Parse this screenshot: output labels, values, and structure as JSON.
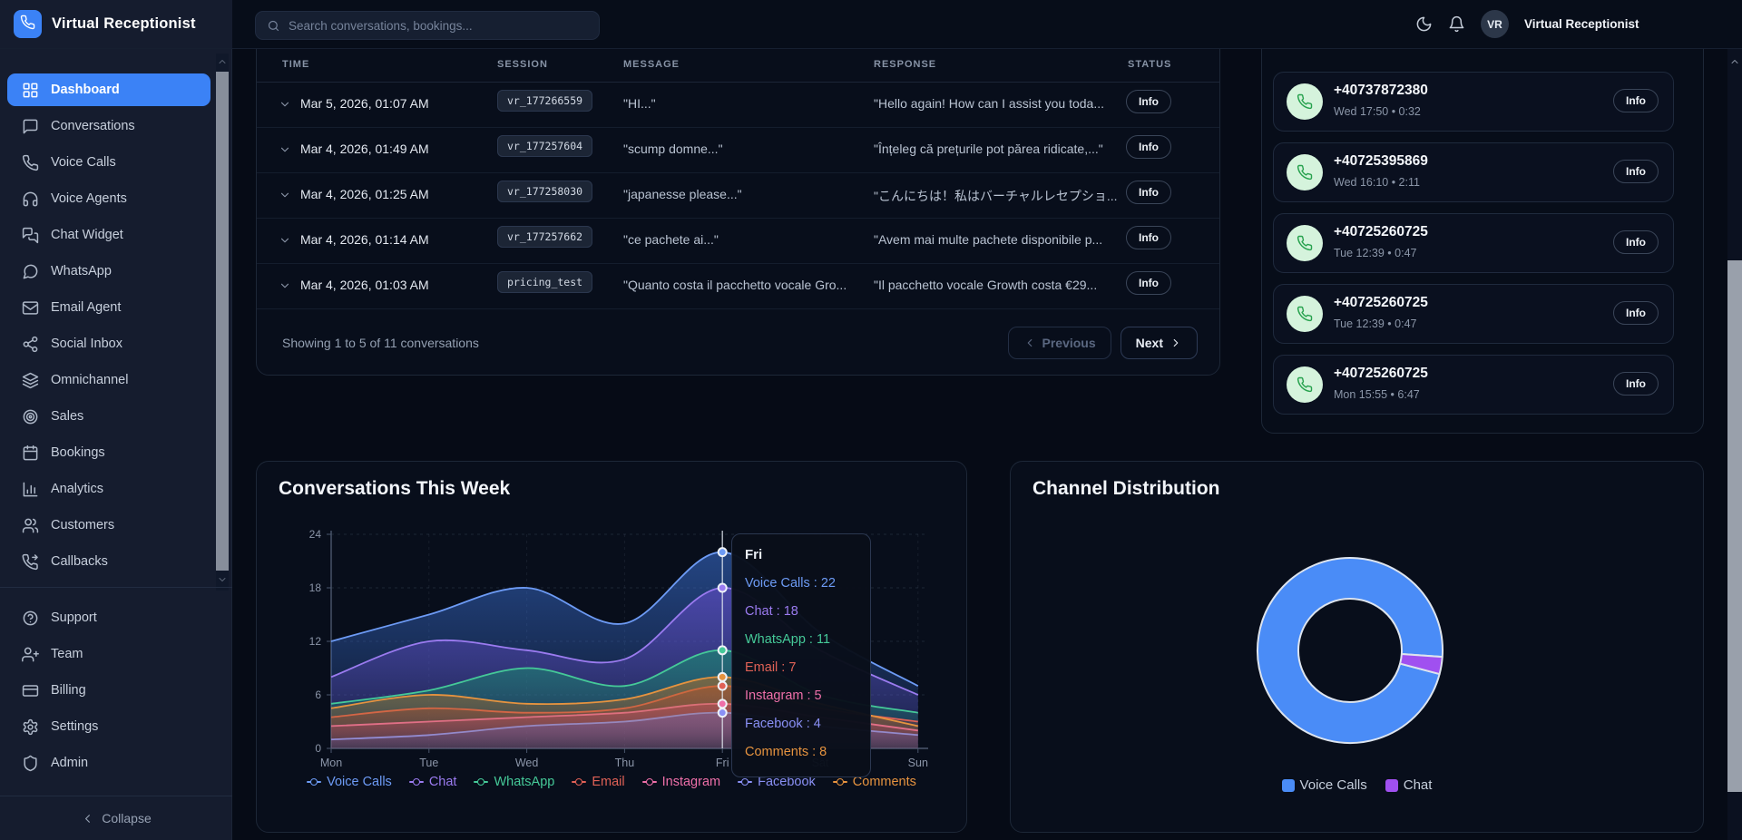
{
  "app": {
    "title": "Virtual Receptionist"
  },
  "topbar": {
    "search_placeholder": "Search conversations, bookings...",
    "user_name": "Virtual Receptionist",
    "user_initials": "VR"
  },
  "sidebar": {
    "items": [
      {
        "label": "Dashboard",
        "icon": "dashboard",
        "active": true
      },
      {
        "label": "Conversations",
        "icon": "message-square",
        "active": false
      },
      {
        "label": "Voice Calls",
        "icon": "phone",
        "active": false
      },
      {
        "label": "Voice Agents",
        "icon": "headphones",
        "active": false
      },
      {
        "label": "Chat Widget",
        "icon": "chat-widget",
        "active": false
      },
      {
        "label": "WhatsApp",
        "icon": "message-circle",
        "active": false
      },
      {
        "label": "Email Agent",
        "icon": "mail",
        "active": false
      },
      {
        "label": "Social Inbox",
        "icon": "share",
        "active": false
      },
      {
        "label": "Omnichannel",
        "icon": "layers",
        "active": false
      },
      {
        "label": "Sales",
        "icon": "target",
        "active": false
      },
      {
        "label": "Bookings",
        "icon": "calendar",
        "active": false
      },
      {
        "label": "Analytics",
        "icon": "bar-chart",
        "active": false
      },
      {
        "label": "Customers",
        "icon": "users",
        "active": false
      },
      {
        "label": "Callbacks",
        "icon": "phone-callback",
        "active": false
      }
    ],
    "bottom_items": [
      {
        "label": "Support",
        "icon": "help-circle"
      },
      {
        "label": "Team",
        "icon": "user-plus"
      },
      {
        "label": "Billing",
        "icon": "credit-card"
      },
      {
        "label": "Settings",
        "icon": "settings"
      },
      {
        "label": "Admin",
        "icon": "shield"
      }
    ],
    "collapse_label": "Collapse"
  },
  "conversations_table": {
    "columns": [
      "TIME",
      "SESSION",
      "MESSAGE",
      "RESPONSE",
      "STATUS"
    ],
    "rows": [
      {
        "time": "Mar 5, 2026, 01:07 AM",
        "session": "vr_177266559",
        "message": "\"HI...\"",
        "response": "\"Hello again! How can I assist you toda...",
        "status": "Info"
      },
      {
        "time": "Mar 4, 2026, 01:49 AM",
        "session": "vr_177257604",
        "message": "\"scump domne...\"",
        "response": "\"Înțeleg că prețurile pot părea ridicate,...\"",
        "status": "Info"
      },
      {
        "time": "Mar 4, 2026, 01:25 AM",
        "session": "vr_177258030",
        "message": "\"japanesse please...\"",
        "response": "\"こんにちは！私はバーチャルレセプショ...",
        "status": "Info"
      },
      {
        "time": "Mar 4, 2026, 01:14 AM",
        "session": "vr_177257662",
        "message": "\"ce pachete ai...\"",
        "response": "\"Avem mai multe pachete disponibile p...",
        "status": "Info"
      },
      {
        "time": "Mar 4, 2026, 01:03 AM",
        "session": "pricing_test",
        "message": "\"Quanto costa il pacchetto vocale Gro...",
        "response": "\"Il pacchetto vocale Growth costa €29...",
        "status": "Info"
      }
    ],
    "footer": {
      "summary": "Showing 1 to 5 of 11 conversations",
      "prev_label": "Previous",
      "next_label": "Next"
    }
  },
  "calls_panel": {
    "items": [
      {
        "number": "+40737872380",
        "meta": "Wed 17:50 • 0:32",
        "action": "Info"
      },
      {
        "number": "+40725395869",
        "meta": "Wed 16:10 • 2:11",
        "action": "Info"
      },
      {
        "number": "+40725260725",
        "meta": "Tue 12:39 • 0:47",
        "action": "Info"
      },
      {
        "number": "+40725260725",
        "meta": "Tue 12:39 • 0:47",
        "action": "Info"
      },
      {
        "number": "+40725260725",
        "meta": "Mon 15:55 • 6:47",
        "action": "Info"
      }
    ]
  },
  "chart_data": [
    {
      "type": "area",
      "title": "Conversations This Week",
      "x": [
        "Mon",
        "Tue",
        "Wed",
        "Thu",
        "Fri",
        "Sat",
        "Sun"
      ],
      "ylim": [
        0,
        24
      ],
      "yticks": [
        0,
        6,
        12,
        18,
        24
      ],
      "grid": true,
      "legend_position": "bottom",
      "series": [
        {
          "name": "Voice Calls",
          "color": "#6d9bf5",
          "fill": "#3b72d8",
          "values": [
            12,
            15,
            18,
            14,
            22,
            13,
            7
          ]
        },
        {
          "name": "Chat",
          "color": "#9b7bf0",
          "fill": "#6d4fd4",
          "values": [
            8,
            12,
            11,
            10,
            18,
            11,
            6
          ]
        },
        {
          "name": "WhatsApp",
          "color": "#45c998",
          "fill": "#159a6c",
          "values": [
            5,
            6.5,
            9,
            7,
            11,
            6,
            4
          ]
        },
        {
          "name": "Email",
          "color": "#e06156",
          "fill": "#b23c34",
          "values": [
            3.5,
            4.5,
            4,
            4.5,
            7,
            4.5,
            3
          ]
        },
        {
          "name": "Instagram",
          "color": "#ee6fa9",
          "fill": "#c23d7e",
          "values": [
            2.5,
            3,
            3.5,
            4,
            5,
            3.5,
            2
          ]
        },
        {
          "name": "Facebook",
          "color": "#8a90f5",
          "fill": "#5159d8",
          "values": [
            1,
            1.5,
            2.5,
            3,
            4,
            2.5,
            1.5
          ]
        },
        {
          "name": "Comments",
          "color": "#e6933f",
          "fill": "#b96f22",
          "values": [
            4.5,
            6,
            5,
            5.5,
            8,
            5,
            2.5
          ]
        }
      ],
      "tooltip": {
        "label": "Fri",
        "x_index": 4,
        "separator": " : "
      }
    },
    {
      "type": "donut",
      "title": "Channel Distribution",
      "segments": [
        {
          "label": "Voice Calls",
          "value": 97,
          "color": "#4a8cf7"
        },
        {
          "label": "Chat",
          "value": 3,
          "color": "#a050f0"
        }
      ],
      "legend_position": "bottom"
    }
  ]
}
